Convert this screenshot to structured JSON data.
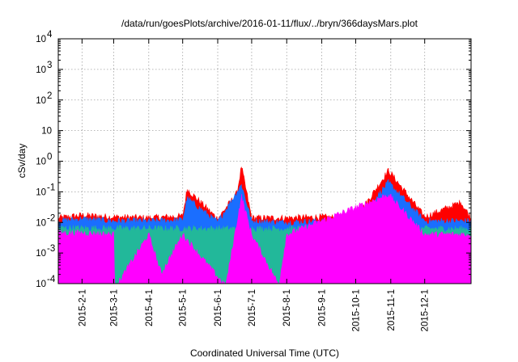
{
  "chart_data": {
    "type": "area",
    "title": "/data/run/goesPlots/archive/2016-01-11/flux/../bryn/366daysMars.plot",
    "xlabel": "Coordinated Universal Time (UTC)",
    "ylabel": "cSv/day",
    "x_axis": {
      "type": "time",
      "range": [
        "2015-01-11",
        "2016-01-11"
      ],
      "ticks": [
        "2015-2-1",
        "2015-3-1",
        "2015-4-1",
        "2015-5-1",
        "2015-6-1",
        "2015-7-1",
        "2015-8-1",
        "2015-9-1",
        "2015-10-1",
        "2015-11-1",
        "2015-12-1"
      ],
      "tick_dates": [
        "2015-02-01",
        "2015-03-01",
        "2015-04-01",
        "2015-05-01",
        "2015-06-01",
        "2015-07-01",
        "2015-08-01",
        "2015-09-01",
        "2015-10-01",
        "2015-11-01",
        "2015-12-01"
      ]
    },
    "y_axis": {
      "scale": "log",
      "ylim": [
        0.0001,
        10000
      ],
      "ticks": [
        {
          "value": 0.0001,
          "base": "10",
          "exp": "-4"
        },
        {
          "value": 0.001,
          "base": "10",
          "exp": "-3"
        },
        {
          "value": 0.01,
          "base": "10",
          "exp": "-2"
        },
        {
          "value": 0.1,
          "base": "10",
          "exp": "-1"
        },
        {
          "value": 1,
          "base": "10",
          "exp": "0"
        },
        {
          "value": 10,
          "base": "10",
          "exp": ""
        },
        {
          "value": 100,
          "base": "10",
          "exp": "2"
        },
        {
          "value": 1000,
          "base": "10",
          "exp": "3"
        },
        {
          "value": 10000,
          "base": "10",
          "exp": "4"
        }
      ]
    },
    "grid": true,
    "legend": "none",
    "series": [
      {
        "color": "#ff0000",
        "values": [
          {
            "x": "2015-01-11",
            "y": 0.014
          },
          {
            "x": "2015-02-01",
            "y": 0.017
          },
          {
            "x": "2015-03-01",
            "y": 0.015
          },
          {
            "x": "2015-04-01",
            "y": 0.014
          },
          {
            "x": "2015-05-01",
            "y": 0.016
          },
          {
            "x": "2015-05-05",
            "y": 0.12
          },
          {
            "x": "2015-06-01",
            "y": 0.013
          },
          {
            "x": "2015-06-18",
            "y": 0.09
          },
          {
            "x": "2015-06-22",
            "y": 0.65
          },
          {
            "x": "2015-07-01",
            "y": 0.014
          },
          {
            "x": "2015-08-01",
            "y": 0.014
          },
          {
            "x": "2015-09-01",
            "y": 0.015
          },
          {
            "x": "2015-10-01",
            "y": 0.013
          },
          {
            "x": "2015-10-30",
            "y": 0.5
          },
          {
            "x": "2015-12-01",
            "y": 0.015
          },
          {
            "x": "2016-01-02",
            "y": 0.045
          },
          {
            "x": "2016-01-11",
            "y": 0.014
          }
        ]
      },
      {
        "color": "#1a6eff",
        "values": [
          {
            "x": "2015-01-11",
            "y": 0.011
          },
          {
            "x": "2015-02-01",
            "y": 0.013
          },
          {
            "x": "2015-03-01",
            "y": 0.011
          },
          {
            "x": "2015-04-01",
            "y": 0.011
          },
          {
            "x": "2015-05-01",
            "y": 0.012
          },
          {
            "x": "2015-05-05",
            "y": 0.06
          },
          {
            "x": "2015-06-01",
            "y": 0.01
          },
          {
            "x": "2015-06-22",
            "y": 0.17
          },
          {
            "x": "2015-07-01",
            "y": 0.011
          },
          {
            "x": "2015-08-01",
            "y": 0.01
          },
          {
            "x": "2015-09-01",
            "y": 0.011
          },
          {
            "x": "2015-10-01",
            "y": 0.01
          },
          {
            "x": "2015-10-30",
            "y": 0.2
          },
          {
            "x": "2015-12-01",
            "y": 0.011
          },
          {
            "x": "2016-01-11",
            "y": 0.011
          }
        ]
      },
      {
        "color": "#22b89a",
        "values": [
          {
            "x": "2015-01-11",
            "y": 0.0065
          },
          {
            "x": "2015-04-01",
            "y": 0.0063
          },
          {
            "x": "2015-07-01",
            "y": 0.0062
          },
          {
            "x": "2015-10-01",
            "y": 0.0063
          },
          {
            "x": "2016-01-11",
            "y": 0.0062
          }
        ]
      },
      {
        "color": "#ff00ff",
        "values": [
          {
            "x": "2015-01-11",
            "y": 0.0045
          },
          {
            "x": "2015-02-01",
            "y": 0.0045
          },
          {
            "x": "2015-03-01",
            "y": 0.004
          },
          {
            "x": "2015-03-02",
            "y": 8e-05
          },
          {
            "x": "2015-03-05",
            "y": 8e-05
          },
          {
            "x": "2015-03-06",
            "y": 0.00012
          },
          {
            "x": "2015-04-01",
            "y": 0.004
          },
          {
            "x": "2015-04-12",
            "y": 0.00021
          },
          {
            "x": "2015-05-01",
            "y": 0.004
          },
          {
            "x": "2015-06-08",
            "y": 8e-05
          },
          {
            "x": "2015-06-22",
            "y": 0.07
          },
          {
            "x": "2015-07-01",
            "y": 0.004
          },
          {
            "x": "2015-07-25",
            "y": 9e-05
          },
          {
            "x": "2015-08-01",
            "y": 0.004
          },
          {
            "x": "2015-10-30",
            "y": 0.08
          },
          {
            "x": "2015-12-01",
            "y": 0.004
          },
          {
            "x": "2016-01-11",
            "y": 0.004
          }
        ]
      }
    ]
  }
}
